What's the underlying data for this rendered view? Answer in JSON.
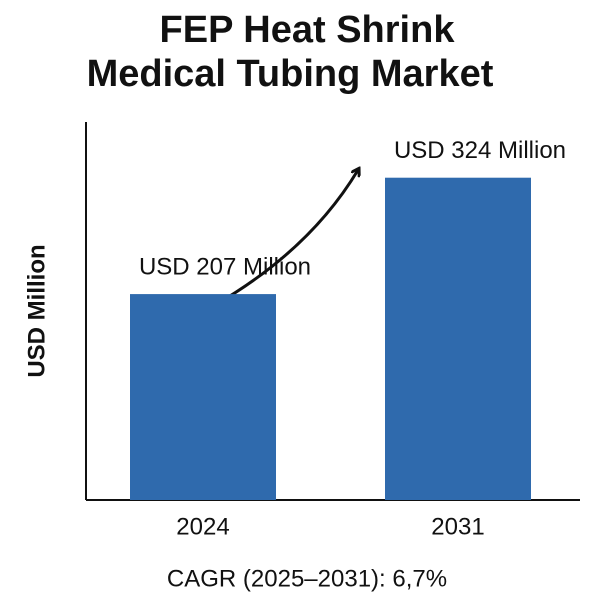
{
  "chart_data": {
    "type": "bar",
    "title": [
      "FEP Heat Shrink",
      "Medical Tubing Market"
    ],
    "y_label": "USD Million",
    "categories": [
      "2024",
      "2031"
    ],
    "values": [
      207,
      324
    ],
    "value_labels": [
      "USD 207 Million",
      "USD 324 Million"
    ],
    "color": "#2f6aad",
    "ylim": [
      0,
      380
    ],
    "annotation": "CAGR (2025–2031): 6,7%"
  }
}
